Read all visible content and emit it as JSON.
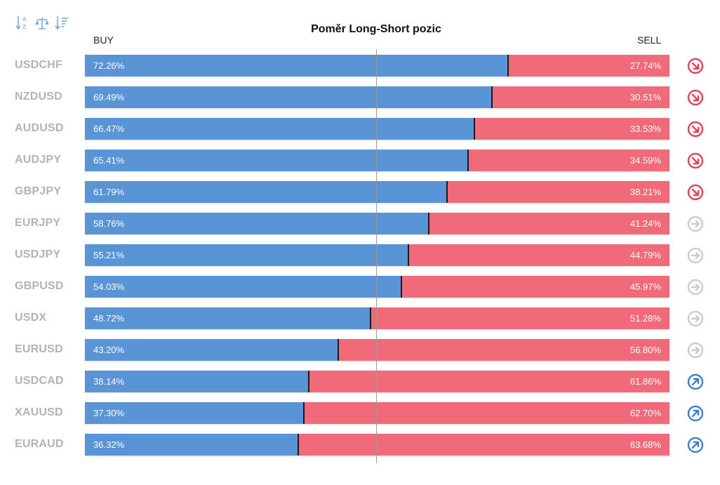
{
  "toolbar": [
    {
      "name": "sort-alpha-icon",
      "icon": "sort-az"
    },
    {
      "name": "balance-icon",
      "icon": "scale"
    },
    {
      "name": "sort-value-icon",
      "icon": "sort-list"
    }
  ],
  "header": {
    "title": "Poměr Long-Short pozic",
    "buy_label": "BUY",
    "sell_label": "SELL"
  },
  "colors": {
    "buy": "#5995d6",
    "sell": "#f06a7a",
    "trend_down": "#e0435a",
    "trend_neutral": "#c8ccd6",
    "trend_up": "#3f80c8"
  },
  "chart_data": {
    "type": "bar",
    "title": "Poměr Long-Short pozic",
    "categories": [
      "USDCHF",
      "NZDUSD",
      "AUDUSD",
      "AUDJPY",
      "GBPJPY",
      "EURJPY",
      "USDJPY",
      "GBPUSD",
      "USDX",
      "EURUSD",
      "USDCAD",
      "XAUUSD",
      "EURAUD"
    ],
    "series": [
      {
        "name": "BUY",
        "values": [
          72.26,
          69.49,
          66.47,
          65.41,
          61.79,
          58.76,
          55.21,
          54.03,
          48.72,
          43.2,
          38.14,
          37.3,
          36.32
        ]
      },
      {
        "name": "SELL",
        "values": [
          27.74,
          30.51,
          33.53,
          34.59,
          38.21,
          41.24,
          44.79,
          45.97,
          51.28,
          56.8,
          61.86,
          62.7,
          63.68
        ]
      }
    ],
    "ylim": [
      0,
      100
    ],
    "stacked": true,
    "reference_line": 50,
    "legend": "top"
  },
  "rows": [
    {
      "symbol": "USDCHF",
      "buy_text": "72.26%",
      "sell_text": "27.74%",
      "trend": "down"
    },
    {
      "symbol": "NZDUSD",
      "buy_text": "69.49%",
      "sell_text": "30.51%",
      "trend": "down"
    },
    {
      "symbol": "AUDUSD",
      "buy_text": "66.47%",
      "sell_text": "33.53%",
      "trend": "down"
    },
    {
      "symbol": "AUDJPY",
      "buy_text": "65.41%",
      "sell_text": "34.59%",
      "trend": "down"
    },
    {
      "symbol": "GBPJPY",
      "buy_text": "61.79%",
      "sell_text": "38.21%",
      "trend": "down"
    },
    {
      "symbol": "EURJPY",
      "buy_text": "58.76%",
      "sell_text": "41.24%",
      "trend": "neutral"
    },
    {
      "symbol": "USDJPY",
      "buy_text": "55.21%",
      "sell_text": "44.79%",
      "trend": "neutral"
    },
    {
      "symbol": "GBPUSD",
      "buy_text": "54.03%",
      "sell_text": "45.97%",
      "trend": "neutral"
    },
    {
      "symbol": "USDX",
      "buy_text": "48.72%",
      "sell_text": "51.28%",
      "trend": "neutral"
    },
    {
      "symbol": "EURUSD",
      "buy_text": "43.20%",
      "sell_text": "56.80%",
      "trend": "neutral"
    },
    {
      "symbol": "USDCAD",
      "buy_text": "38.14%",
      "sell_text": "61.86%",
      "trend": "up"
    },
    {
      "symbol": "XAUUSD",
      "buy_text": "37.30%",
      "sell_text": "62.70%",
      "trend": "up"
    },
    {
      "symbol": "EURAUD",
      "buy_text": "36.32%",
      "sell_text": "63.68%",
      "trend": "up"
    }
  ]
}
